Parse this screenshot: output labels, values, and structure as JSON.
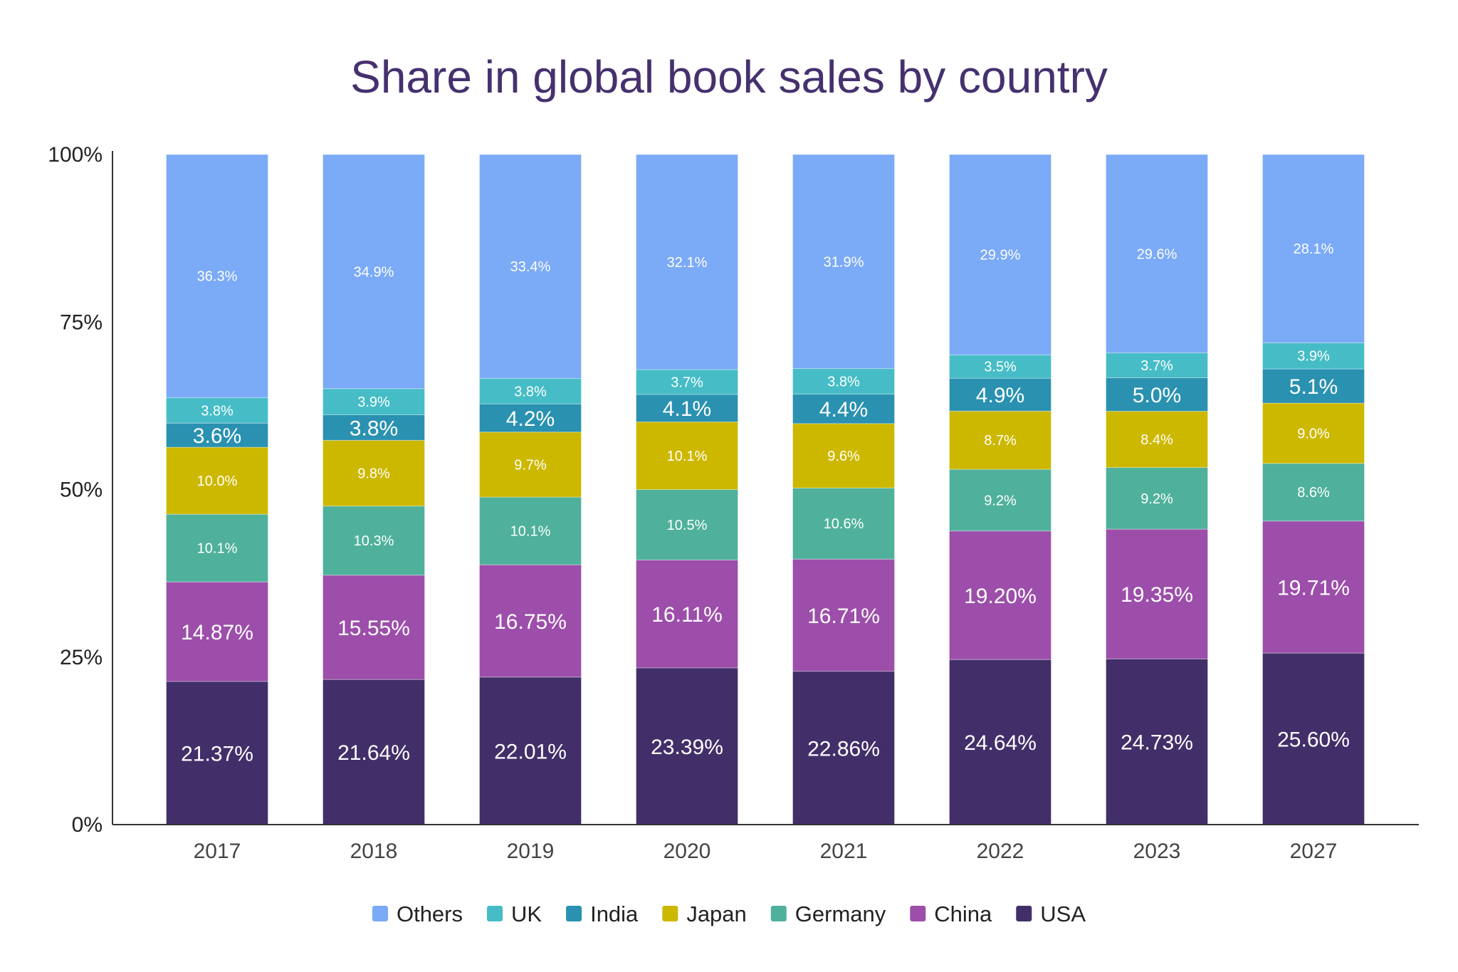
{
  "chart_data": {
    "type": "bar",
    "stacked": true,
    "percent_stacked": true,
    "title": "Share in global book sales by country",
    "xlabel": "",
    "ylabel": "",
    "ylim": [
      0,
      100
    ],
    "yticks": [
      "0%",
      "25%",
      "50%",
      "75%",
      "100%"
    ],
    "grid": false,
    "legend_position": "bottom",
    "categories": [
      "2017",
      "2018",
      "2019",
      "2020",
      "2021",
      "2022",
      "2023",
      "2027"
    ],
    "series": [
      {
        "name": "USA",
        "color": "#422f69",
        "values": [
          21.37,
          21.64,
          22.01,
          23.39,
          22.86,
          24.64,
          24.73,
          25.6
        ],
        "labels": [
          "21.37%",
          "21.64%",
          "22.01%",
          "23.39%",
          "22.86%",
          "24.64%",
          "24.73%",
          "25.60%"
        ],
        "label_size": "large"
      },
      {
        "name": "China",
        "color": "#9c4eaa",
        "values": [
          14.87,
          15.55,
          16.75,
          16.11,
          16.71,
          19.2,
          19.35,
          19.71
        ],
        "labels": [
          "14.87%",
          "15.55%",
          "16.75%",
          "16.11%",
          "16.71%",
          "19.20%",
          "19.35%",
          "19.71%"
        ],
        "label_size": "large"
      },
      {
        "name": "Germany",
        "color": "#4fb19b",
        "values": [
          10.1,
          10.3,
          10.1,
          10.5,
          10.6,
          9.2,
          9.2,
          8.6
        ],
        "labels": [
          "10.1%",
          "10.3%",
          "10.1%",
          "10.5%",
          "10.6%",
          "9.2%",
          "9.2%",
          "8.6%"
        ],
        "label_size": "small"
      },
      {
        "name": "Japan",
        "color": "#cdb800",
        "values": [
          10.0,
          9.8,
          9.7,
          10.1,
          9.6,
          8.7,
          8.4,
          9.0
        ],
        "labels": [
          "10.0%",
          "9.8%",
          "9.7%",
          "10.1%",
          "9.6%",
          "8.7%",
          "8.4%",
          "9.0%"
        ],
        "label_size": "small"
      },
      {
        "name": "India",
        "color": "#2a91b1",
        "values": [
          3.6,
          3.8,
          4.2,
          4.1,
          4.4,
          4.9,
          5.0,
          5.1
        ],
        "labels": [
          "3.6%",
          "3.8%",
          "4.2%",
          "4.1%",
          "4.4%",
          "4.9%",
          "5.0%",
          "5.1%"
        ],
        "label_size": "large"
      },
      {
        "name": "UK",
        "color": "#46bdc6",
        "values": [
          3.8,
          3.9,
          3.8,
          3.7,
          3.8,
          3.5,
          3.7,
          3.9
        ],
        "labels": [
          "3.8%",
          "3.9%",
          "3.8%",
          "3.7%",
          "3.8%",
          "3.5%",
          "3.7%",
          "3.9%"
        ],
        "label_size": "small"
      },
      {
        "name": "Others",
        "color": "#7baaf7",
        "values": [
          36.3,
          34.9,
          33.4,
          32.1,
          31.9,
          29.9,
          29.6,
          28.1
        ],
        "labels": [
          "36.3%",
          "34.9%",
          "33.4%",
          "32.1%",
          "31.9%",
          "29.9%",
          "29.6%",
          "28.1%"
        ],
        "label_size": "small"
      }
    ],
    "legend_order": [
      "Others",
      "UK",
      "India",
      "Japan",
      "Germany",
      "China",
      "USA"
    ]
  }
}
